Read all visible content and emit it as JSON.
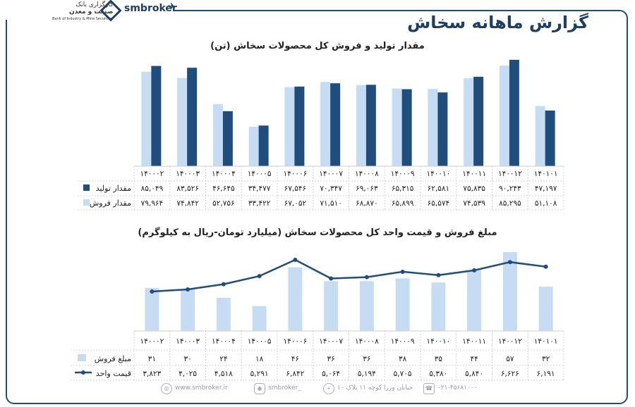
{
  "report_title": "گزارش ماهانه سخاش",
  "brand": {
    "name": "smbroker",
    "logo_line1": "کارگزاری بانک",
    "logo_line2": "صنعت و معدن",
    "logo_line3": "Bank of Industry & Mine Securities"
  },
  "footer": {
    "website": "www.smbroker.ir",
    "instagram": "smbroker_",
    "address": "خیابان وزرا کوچه ۱۱ پلاک ۱۰",
    "phone": "۰۲۱-۴۵۶۸۱۰۰۰"
  },
  "colors": {
    "production": "#1f4e7d",
    "sales": "#c6dcf3",
    "price_line": "#1f4e7d",
    "frame": "#1f4d7a"
  },
  "chart_data": [
    {
      "type": "bar",
      "title": "مقدار تولید و فروش کل محصولات سخاش (تن)",
      "categories": [
        "۱۴۰۰۰۲",
        "۱۴۰۰۰۳",
        "۱۴۰۰۰۴",
        "۱۴۰۰۰۵",
        "۱۴۰۰۰۶",
        "۱۴۰۰۰۷",
        "۱۴۰۰۰۸",
        "۱۴۰۰۰۹",
        "۱۴۰۰۱۰",
        "۱۴۰۰۱۱",
        "۱۴۰۰۱۲",
        "۱۴۰۱۰۱"
      ],
      "series": [
        {
          "name": "مقدار تولید",
          "values": [
            85049,
            83526,
            46645,
            34477,
            67546,
            70347,
            69063,
            65315,
            62581,
            75835,
            90243,
            47197
          ],
          "labels": [
            "۸۵,۰۴۹",
            "۸۳,۵۲۶",
            "۴۶,۶۴۵",
            "۳۴,۴۷۷",
            "۶۷,۵۴۶",
            "۷۰,۳۴۷",
            "۶۹,۰۶۳",
            "۶۵,۳۱۵",
            "۶۲,۵۸۱",
            "۷۵,۸۳۵",
            "۹۰,۲۴۳",
            "۴۷,۱۹۷"
          ]
        },
        {
          "name": "مقدار فروش",
          "values": [
            79964,
            74842,
            52756,
            33422,
            67052,
            71510,
            68870,
            65899,
            65574,
            74539,
            85295,
            51108
          ],
          "labels": [
            "۷۹,۹۶۴",
            "۷۴,۸۴۲",
            "۵۲,۷۵۶",
            "۳۳,۴۲۲",
            "۶۷,۰۵۲",
            "۷۱,۵۱۰",
            "۶۸,۸۷۰",
            "۶۵,۸۹۹",
            "۶۵,۵۷۴",
            "۷۴,۵۳۹",
            "۸۵,۲۹۵",
            "۵۱,۱۰۸"
          ]
        }
      ],
      "ylim": [
        0,
        92000
      ],
      "grid": false,
      "legend": "data-table"
    },
    {
      "type": "bar+line",
      "title": "مبلغ فروش و قیمت واحد کل محصولات سخاش (میلیارد تومان-ریال به کیلوگرم)",
      "categories": [
        "۱۴۰۰۰۲",
        "۱۴۰۰۰۳",
        "۱۴۰۰۰۴",
        "۱۴۰۰۰۵",
        "۱۴۰۰۰۶",
        "۱۴۰۰۰۷",
        "۱۴۰۰۰۸",
        "۱۴۰۰۰۹",
        "۱۴۰۰۱۰",
        "۱۴۰۰۱۱",
        "۱۴۰۰۱۲",
        "۱۴۰۱۰۱"
      ],
      "series": [
        {
          "name": "مبلغ فروش",
          "kind": "bar",
          "values": [
            31,
            30,
            24,
            18,
            46,
            36,
            36,
            38,
            35,
            44,
            57,
            32
          ],
          "labels": [
            "۳۱",
            "۳۰",
            "۲۴",
            "۱۸",
            "۴۶",
            "۳۶",
            "۳۶",
            "۳۸",
            "۳۵",
            "۴۴",
            "۵۷",
            "۳۲"
          ]
        },
        {
          "name": "قیمت واحد",
          "kind": "line",
          "values": [
            3823,
            4025,
            4518,
            5291,
            6842,
            5064,
            5194,
            5705,
            5380,
            5840,
            6626,
            6191
          ],
          "labels": [
            "۳,۸۲۳",
            "۴,۰۲۵",
            "۴,۵۱۸",
            "۵,۲۹۱",
            "۶,۸۴۲",
            "۵,۰۶۴",
            "۵,۱۹۴",
            "۵,۷۰۵",
            "۵,۳۸۰",
            "۵,۸۴۰",
            "۶,۶۲۶",
            "۶,۱۹۱"
          ]
        }
      ],
      "grid": false,
      "legend": "data-table"
    }
  ]
}
